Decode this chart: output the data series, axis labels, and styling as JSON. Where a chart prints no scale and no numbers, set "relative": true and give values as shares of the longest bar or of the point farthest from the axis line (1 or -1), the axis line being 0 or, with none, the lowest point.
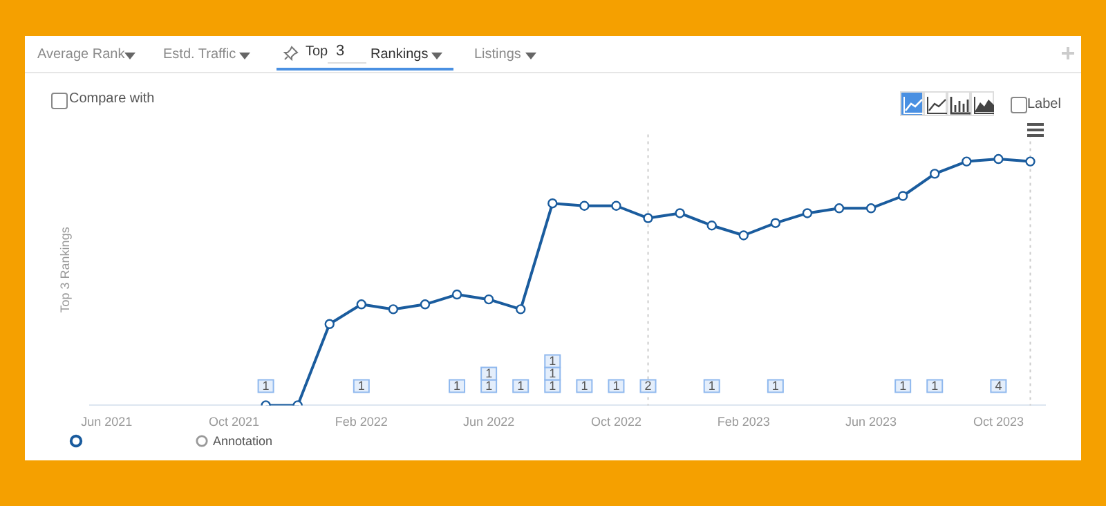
{
  "chart_data": {
    "type": "line",
    "ylabel": "Top 3 Rankings",
    "relative": true,
    "marker": "circle",
    "legend": "bottom left",
    "grid": false,
    "xlim": [
      "2021-05-15",
      "2023-11-15"
    ],
    "xticks": [
      {
        "value": "2021-06",
        "label": "Jun 2021"
      },
      {
        "value": "2021-10",
        "label": "Oct 2021"
      },
      {
        "value": "2022-02",
        "label": "Feb 2022"
      },
      {
        "value": "2022-06",
        "label": "Jun 2022"
      },
      {
        "value": "2022-10",
        "label": "Oct 2022"
      },
      {
        "value": "2023-02",
        "label": "Feb 2023"
      },
      {
        "value": "2023-06",
        "label": "Jun 2023"
      },
      {
        "value": "2023-10",
        "label": "Oct 2023"
      }
    ],
    "x": [
      "2021-11",
      "2021-12",
      "2022-01",
      "2022-02",
      "2022-03",
      "2022-04",
      "2022-05",
      "2022-06",
      "2022-07",
      "2022-08",
      "2022-09",
      "2022-10",
      "2022-11",
      "2022-12",
      "2023-01",
      "2023-02",
      "2023-03",
      "2023-04",
      "2023-05",
      "2023-06",
      "2023-07",
      "2023-08",
      "2023-09",
      "2023-10",
      "2023-11"
    ],
    "series": [
      {
        "color": "#1a5c9e",
        "values": [
          0,
          0,
          0.33,
          0.41,
          0.39,
          0.41,
          0.45,
          0.43,
          0.39,
          0.82,
          0.81,
          0.81,
          0.76,
          0.78,
          0.73,
          0.69,
          0.74,
          0.78,
          0.8,
          0.8,
          0.85,
          0.94,
          0.99,
          1,
          0.99
        ]
      },
      {
        "name": "Annotation",
        "type": "scatter",
        "color": "#999999",
        "values": [
          null,
          null,
          null,
          null,
          null,
          null,
          null,
          null,
          null,
          null,
          null,
          null,
          null,
          null,
          null,
          null,
          null,
          null,
          null,
          null,
          null,
          null,
          null,
          null,
          null
        ]
      }
    ],
    "ref_lines": [
      {
        "axis": "x",
        "value": "2022-11",
        "color": "#cccccc",
        "line_style": "dotted"
      },
      {
        "axis": "x",
        "value": "2023-11",
        "color": "#cccccc",
        "line_style": "dotted"
      }
    ],
    "annotations": [
      "Average Rank",
      "Estd. Traffic",
      "Top",
      "3",
      "Rankings",
      "Listings",
      "Compare with",
      "Label",
      {
        "text": "1",
        "x": "2021-11"
      },
      {
        "text": "1",
        "x": "2022-02"
      },
      {
        "text": "1",
        "x": "2022-05"
      },
      {
        "text": "1",
        "x": "2022-06"
      },
      {
        "text": "1",
        "x": "2022-06"
      },
      {
        "text": "1",
        "x": "2022-07"
      },
      {
        "text": "1",
        "x": "2022-08"
      },
      {
        "text": "1",
        "x": "2022-08"
      },
      {
        "text": "1",
        "x": "2022-08"
      },
      {
        "text": "1",
        "x": "2022-09"
      },
      {
        "text": "1",
        "x": "2022-10"
      },
      {
        "text": "2",
        "x": "2022-11"
      },
      {
        "text": "1",
        "x": "2023-01"
      },
      {
        "text": "1",
        "x": "2023-03"
      },
      {
        "text": "1",
        "x": "2023-07"
      },
      {
        "text": "1",
        "x": "2023-08"
      },
      {
        "text": "4",
        "x": "2023-10"
      }
    ]
  }
}
